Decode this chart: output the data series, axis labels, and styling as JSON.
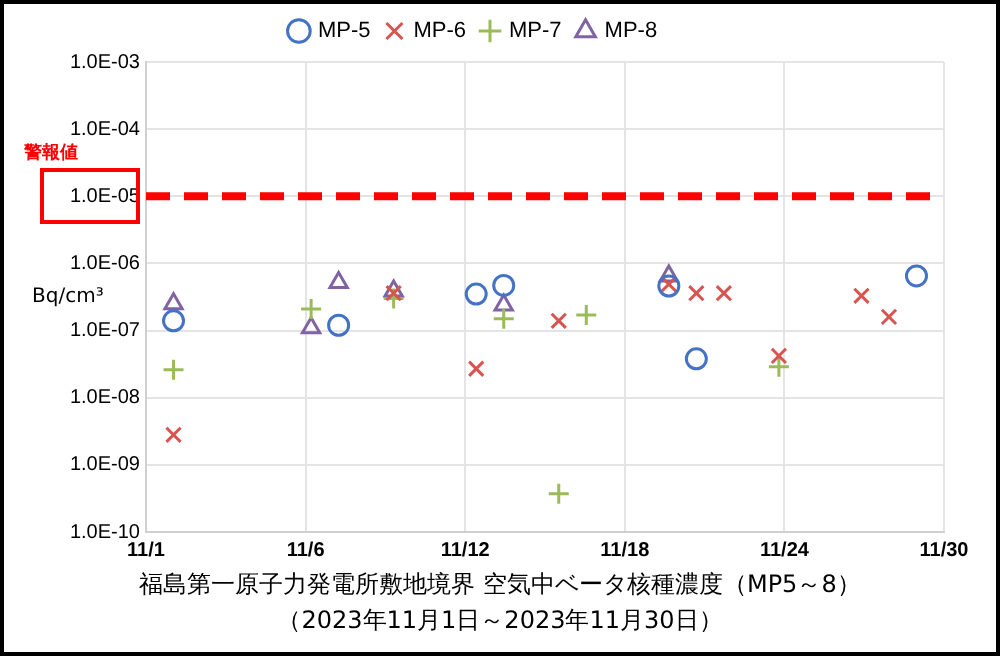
{
  "chart_data": {
    "type": "scatter",
    "title": "福島第一原子力発電所敷地境界  空気中ベータ核種濃度（MP5～8）",
    "subtitle": "（2023年11月1日～2023年11月30日）",
    "ylabel": "Bq/cm³",
    "xlim": [
      "--11-01",
      "--11-30"
    ],
    "xticks": [
      {
        "value": "--11-01",
        "label": "11/1"
      },
      {
        "value": "--11-06T19:12",
        "label": "11/6"
      },
      {
        "value": "--11-12T14:24",
        "label": "11/12"
      },
      {
        "value": "--11-18T09:36",
        "label": "11/18"
      },
      {
        "value": "--11-24T04:48",
        "label": "11/24"
      },
      {
        "value": "--11-30",
        "label": "11/30"
      }
    ],
    "ylim": [
      1e-10,
      0.001
    ],
    "yticks": [
      {
        "value": 1e-10,
        "label": "1.0E-10"
      },
      {
        "value": 1e-09,
        "label": "1.0E-09"
      },
      {
        "value": 1e-08,
        "label": "1.0E-08"
      },
      {
        "value": 1e-07,
        "label": "1.0E-07"
      },
      {
        "value": 1e-06,
        "label": "1.0E-06"
      },
      {
        "value": 1e-05,
        "label": "1.0E-05"
      },
      {
        "value": 0.0001,
        "label": "1.0E-04"
      },
      {
        "value": 0.001,
        "label": "1.0E-03"
      }
    ],
    "log": "y",
    "grid": true,
    "legend": "top",
    "ref_lines": [
      {
        "axis": "y",
        "value": 1e-05,
        "label": "警報値",
        "color": "#ff0000",
        "line_style": "dashed"
      }
    ],
    "series": [
      {
        "name": "MP-5",
        "color": "#4472c4",
        "marker": "circle",
        "x": [
          "--11-02",
          "--11-08",
          "--11-13",
          "--11-14",
          "--11-20",
          "--11-21",
          "--11-29"
        ],
        "values": [
          1.4e-07,
          1.2e-07,
          3.5e-07,
          4.7e-07,
          4.6e-07,
          3.8e-08,
          6.5e-07
        ]
      },
      {
        "name": "MP-6",
        "color": "#d9534f",
        "marker": "cross",
        "x": [
          "--11-02",
          "--11-10",
          "--11-13",
          "--11-16",
          "--11-20",
          "--11-21",
          "--11-22",
          "--11-24",
          "--11-27",
          "--11-28"
        ],
        "values": [
          2.8e-09,
          3.6e-07,
          2.7e-08,
          1.4e-07,
          4.9e-07,
          3.6e-07,
          3.6e-07,
          4.2e-08,
          3.3e-07,
          1.6e-07
        ]
      },
      {
        "name": "MP-7",
        "color": "#9bbb59",
        "marker": "plus",
        "x": [
          "--11-02",
          "--11-07",
          "--11-10",
          "--11-14",
          "--11-16",
          "--11-17",
          "--11-24"
        ],
        "values": [
          2.6e-08,
          2.1e-07,
          3e-07,
          1.5e-07,
          3.7e-10,
          1.7e-07,
          2.9e-08
        ]
      },
      {
        "name": "MP-8",
        "color": "#8064a2",
        "marker": "triangle",
        "x": [
          "--11-02",
          "--11-07",
          "--11-08",
          "--11-10",
          "--11-14",
          "--11-20"
        ],
        "values": [
          2.5e-07,
          1.1e-07,
          5.2e-07,
          3.9e-07,
          2.4e-07,
          6.5e-07
        ]
      }
    ]
  }
}
